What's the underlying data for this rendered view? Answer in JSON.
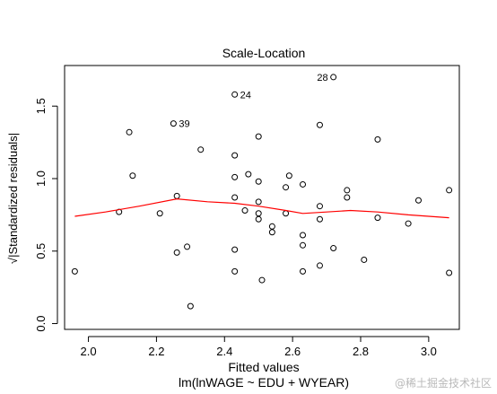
{
  "chart_data": {
    "type": "scatter",
    "title": "Scale-Location",
    "xlabel": "Fitted values",
    "xlabel_sub": "lm(lnWAGE ~ EDU + WYEAR)",
    "ylabel": "√|Standardized residuals|",
    "xlim": [
      1.93,
      3.09
    ],
    "ylim": [
      -0.04,
      1.78
    ],
    "x_ticks": [
      "2.0",
      "2.2",
      "2.4",
      "2.6",
      "2.8",
      "3.0"
    ],
    "x_tick_values": [
      2.0,
      2.2,
      2.4,
      2.6,
      2.8,
      3.0
    ],
    "y_ticks": [
      "0.0",
      "0.5",
      "1.0",
      "1.5"
    ],
    "y_tick_values": [
      0.0,
      0.5,
      1.0,
      1.5
    ],
    "grid": false,
    "points": [
      [
        1.96,
        0.36
      ],
      [
        2.09,
        0.77
      ],
      [
        2.12,
        1.32
      ],
      [
        2.13,
        1.02
      ],
      [
        2.21,
        0.76
      ],
      [
        2.25,
        1.38
      ],
      [
        2.26,
        0.88
      ],
      [
        2.26,
        0.49
      ],
      [
        2.29,
        0.53
      ],
      [
        2.3,
        0.12
      ],
      [
        2.33,
        1.2
      ],
      [
        2.43,
        1.58
      ],
      [
        2.43,
        1.16
      ],
      [
        2.43,
        1.01
      ],
      [
        2.43,
        0.87
      ],
      [
        2.43,
        0.51
      ],
      [
        2.43,
        0.36
      ],
      [
        2.46,
        0.78
      ],
      [
        2.47,
        1.03
      ],
      [
        2.5,
        1.29
      ],
      [
        2.5,
        0.98
      ],
      [
        2.5,
        0.84
      ],
      [
        2.5,
        0.76
      ],
      [
        2.5,
        0.72
      ],
      [
        2.51,
        0.3
      ],
      [
        2.54,
        0.67
      ],
      [
        2.54,
        0.63
      ],
      [
        2.58,
        0.94
      ],
      [
        2.59,
        1.02
      ],
      [
        2.58,
        0.76
      ],
      [
        2.63,
        0.96
      ],
      [
        2.63,
        0.61
      ],
      [
        2.63,
        0.54
      ],
      [
        2.63,
        0.36
      ],
      [
        2.68,
        1.37
      ],
      [
        2.68,
        0.81
      ],
      [
        2.68,
        0.72
      ],
      [
        2.68,
        0.4
      ],
      [
        2.72,
        1.7
      ],
      [
        2.72,
        0.52
      ],
      [
        2.76,
        0.92
      ],
      [
        2.76,
        0.87
      ],
      [
        2.81,
        0.44
      ],
      [
        2.85,
        1.27
      ],
      [
        2.85,
        0.73
      ],
      [
        2.94,
        0.69
      ],
      [
        2.97,
        0.85
      ],
      [
        3.06,
        0.92
      ],
      [
        3.06,
        0.35
      ]
    ],
    "labeled_points": [
      {
        "label": "28",
        "x": 2.72,
        "y": 1.7
      },
      {
        "label": "24",
        "x": 2.43,
        "y": 1.58
      },
      {
        "label": "39",
        "x": 2.25,
        "y": 1.38
      }
    ],
    "smooth_line": {
      "color": "#ff0000",
      "x": [
        1.96,
        2.05,
        2.15,
        2.26,
        2.35,
        2.43,
        2.5,
        2.58,
        2.63,
        2.7,
        2.77,
        2.85,
        2.94,
        3.06
      ],
      "y": [
        0.74,
        0.77,
        0.81,
        0.86,
        0.84,
        0.83,
        0.81,
        0.78,
        0.76,
        0.77,
        0.78,
        0.77,
        0.75,
        0.73
      ]
    }
  },
  "watermark": "@稀土掘金技术社区"
}
